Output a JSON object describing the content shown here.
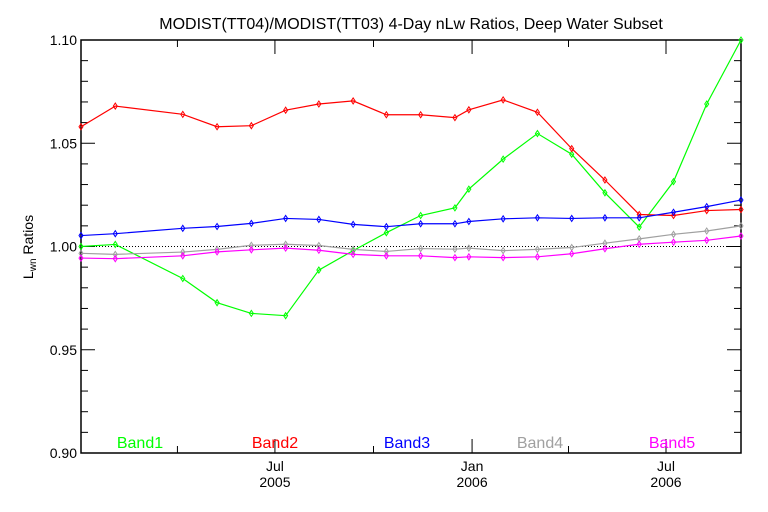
{
  "chart_data": {
    "type": "line",
    "title": "MODIST(TT04)/MODIST(TT03) 4-Day nLw Ratios, Deep Water Subset",
    "ylabel_main": "L",
    "ylabel_sub": "wn",
    "ylabel_rest": " Ratios",
    "xlabel": "",
    "x_units": "days since 2005-01-01",
    "xlim": [
      0,
      616
    ],
    "ylim": [
      0.9,
      1.1
    ],
    "y_ticks": [
      0.9,
      0.95,
      1.0,
      1.05,
      1.1
    ],
    "y_tick_labels": [
      "0.90",
      "0.95",
      "1.00",
      "1.05",
      "1.10"
    ],
    "y_minor_step": 0.01,
    "x_major_ticks": [
      {
        "x": 181,
        "line1": "Jul",
        "line2": "2005"
      },
      {
        "x": 365,
        "line1": "Jan",
        "line2": "2006"
      },
      {
        "x": 546,
        "line1": "Jul",
        "line2": "2006"
      }
    ],
    "x_minor_ticks": [
      90,
      273,
      455
    ],
    "reference_line": 1.0,
    "grid": false,
    "legend_placement": "bottom",
    "x": [
      0,
      32,
      95,
      127,
      159,
      191,
      222,
      254,
      285,
      317,
      349,
      362,
      394,
      426,
      458,
      489,
      521,
      553,
      584,
      616
    ],
    "series": [
      {
        "name": "Band1",
        "color": "#00ff00",
        "values": [
          1.0,
          1.001,
          0.9845,
          0.9728,
          0.9676,
          0.9665,
          0.9886,
          0.998,
          1.0067,
          1.015,
          1.0187,
          1.0278,
          1.0423,
          1.0547,
          1.0447,
          1.026,
          1.0094,
          1.0314,
          1.069,
          1.1
        ]
      },
      {
        "name": "Band2",
        "color": "#ff0000",
        "values": [
          1.058,
          1.068,
          1.064,
          1.058,
          1.0585,
          1.066,
          1.069,
          1.0705,
          1.0638,
          1.0638,
          1.0624,
          1.0662,
          1.071,
          1.065,
          1.0474,
          1.0322,
          1.0155,
          1.015,
          1.0174,
          1.0179
        ]
      },
      {
        "name": "Band3",
        "color": "#0000ff",
        "values": [
          1.0053,
          1.0062,
          1.0088,
          1.0097,
          1.0112,
          1.0136,
          1.0131,
          1.0107,
          1.0096,
          1.011,
          1.011,
          1.0121,
          1.0134,
          1.0139,
          1.0136,
          1.0139,
          1.0139,
          1.0166,
          1.0193,
          1.0225
        ]
      },
      {
        "name": "Band4",
        "color": "#a0a0a0",
        "values": [
          0.9967,
          0.9962,
          0.9973,
          0.9986,
          1.0006,
          1.0011,
          1.0005,
          0.9986,
          0.9976,
          0.999,
          0.9987,
          0.9992,
          0.998,
          0.9986,
          0.9995,
          1.0016,
          1.0037,
          1.0059,
          1.0075,
          1.01
        ]
      },
      {
        "name": "Band5",
        "color": "#ff00ff",
        "values": [
          0.9944,
          0.9941,
          0.9955,
          0.9974,
          0.9984,
          0.9992,
          0.9982,
          0.9962,
          0.9955,
          0.9955,
          0.9946,
          0.995,
          0.9946,
          0.995,
          0.9965,
          0.9989,
          1.0011,
          1.0021,
          1.003,
          1.0051
        ]
      }
    ]
  }
}
